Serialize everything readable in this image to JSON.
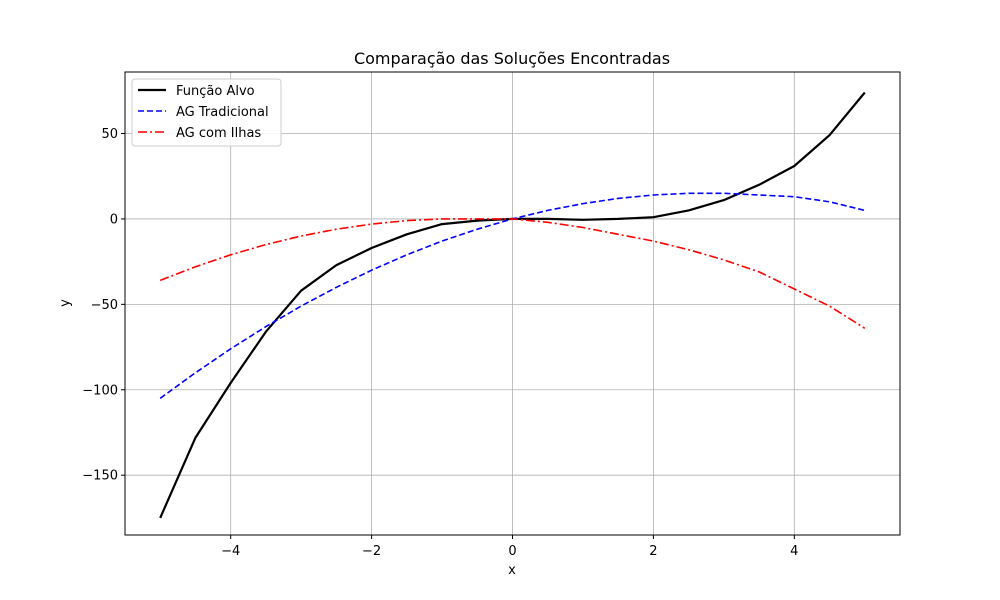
{
  "chart_data": {
    "type": "line",
    "title": "Comparação das Soluções Encontradas",
    "xlabel": "x",
    "ylabel": "y",
    "xlim": [
      -5.5,
      5.5
    ],
    "ylim": [
      -185,
      86
    ],
    "xticks": [
      -4,
      -2,
      0,
      2,
      4
    ],
    "yticks": [
      -150,
      -100,
      -50,
      0,
      50
    ],
    "xtick_labels": [
      "−4",
      "−2",
      "0",
      "2",
      "4"
    ],
    "ytick_labels": [
      "−150",
      "−100",
      "−50",
      "0",
      "50"
    ],
    "grid": true,
    "legend_position": "upper-left",
    "x": [
      -5,
      -4.5,
      -4,
      -3.5,
      -3,
      -2.5,
      -2,
      -1.5,
      -1,
      -0.5,
      0,
      0.5,
      1,
      1.5,
      2,
      2.5,
      3,
      3.5,
      4,
      4.5,
      5
    ],
    "series": [
      {
        "name": "Função Alvo",
        "color": "#000000",
        "style": "solid",
        "values": [
          -175,
          -128,
          -96,
          -66,
          -42,
          -27,
          -17,
          -9,
          -3,
          -1,
          0,
          0,
          -0.5,
          0,
          1,
          5,
          11,
          20,
          31,
          49,
          74
        ]
      },
      {
        "name": "AG Tradicional",
        "color": "#0000ff",
        "style": "dashed",
        "values": [
          -105,
          -90,
          -76,
          -63,
          -51,
          -40,
          -30,
          -21,
          -13,
          -6,
          0,
          5,
          9,
          12,
          14,
          15,
          15,
          14,
          13,
          10,
          5
        ]
      },
      {
        "name": "AG com Ilhas",
        "color": "#ff0000",
        "style": "dashdot",
        "values": [
          -36,
          -28,
          -21,
          -15,
          -10,
          -6,
          -3,
          -1,
          0,
          0,
          0,
          -2,
          -5,
          -9,
          -13,
          -18,
          -24,
          -31,
          -41,
          -51,
          -64
        ]
      }
    ]
  }
}
